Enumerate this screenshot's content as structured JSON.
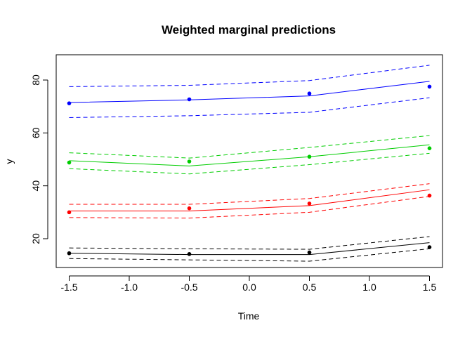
{
  "chart_data": {
    "type": "line",
    "title": "Weighted marginal predictions",
    "xlabel": "Time",
    "ylabel": "y",
    "x": [
      -1.5,
      -0.5,
      0.5,
      1.5
    ],
    "xlim": [
      -1.5,
      1.5
    ],
    "ylim": [
      9,
      88
    ],
    "x_ticks": [
      "-1.5",
      "-1.0",
      "-0.5",
      "0.0",
      "0.5",
      "1.0",
      "1.5"
    ],
    "x_tick_values": [
      -1.5,
      -1.0,
      -0.5,
      0.0,
      0.5,
      1.0,
      1.5
    ],
    "y_ticks": [
      "20",
      "40",
      "60",
      "80"
    ],
    "y_tick_values": [
      20,
      40,
      60,
      80
    ],
    "grid": false,
    "series": [
      {
        "color": "#000000",
        "line": [
          14.5,
          14.0,
          14.0,
          18.5
        ],
        "upper": [
          16.5,
          16.2,
          16.0,
          20.8
        ],
        "lower": [
          12.5,
          12.0,
          11.5,
          16.2
        ],
        "points": [
          14.5,
          14.2,
          14.8,
          16.8
        ]
      },
      {
        "color": "#ff0000",
        "line": [
          30.5,
          30.5,
          32.5,
          38.5
        ],
        "upper": [
          33.0,
          33.0,
          35.2,
          40.8
        ],
        "lower": [
          28.0,
          27.8,
          30.0,
          36.0
        ],
        "points": [
          30.0,
          31.5,
          33.3,
          36.3
        ]
      },
      {
        "color": "#00cd00",
        "line": [
          49.5,
          47.5,
          51.0,
          55.5
        ],
        "upper": [
          52.5,
          50.5,
          54.5,
          59.0
        ],
        "lower": [
          46.5,
          44.5,
          48.0,
          52.3
        ],
        "points": [
          48.8,
          49.2,
          51.0,
          54.2
        ]
      },
      {
        "color": "#0000ff",
        "line": [
          71.5,
          72.5,
          74.0,
          79.5
        ],
        "upper": [
          77.5,
          78.0,
          79.8,
          85.6
        ],
        "lower": [
          65.8,
          66.5,
          67.8,
          73.3
        ],
        "points": [
          71.2,
          72.7,
          74.9,
          77.5
        ]
      }
    ]
  }
}
